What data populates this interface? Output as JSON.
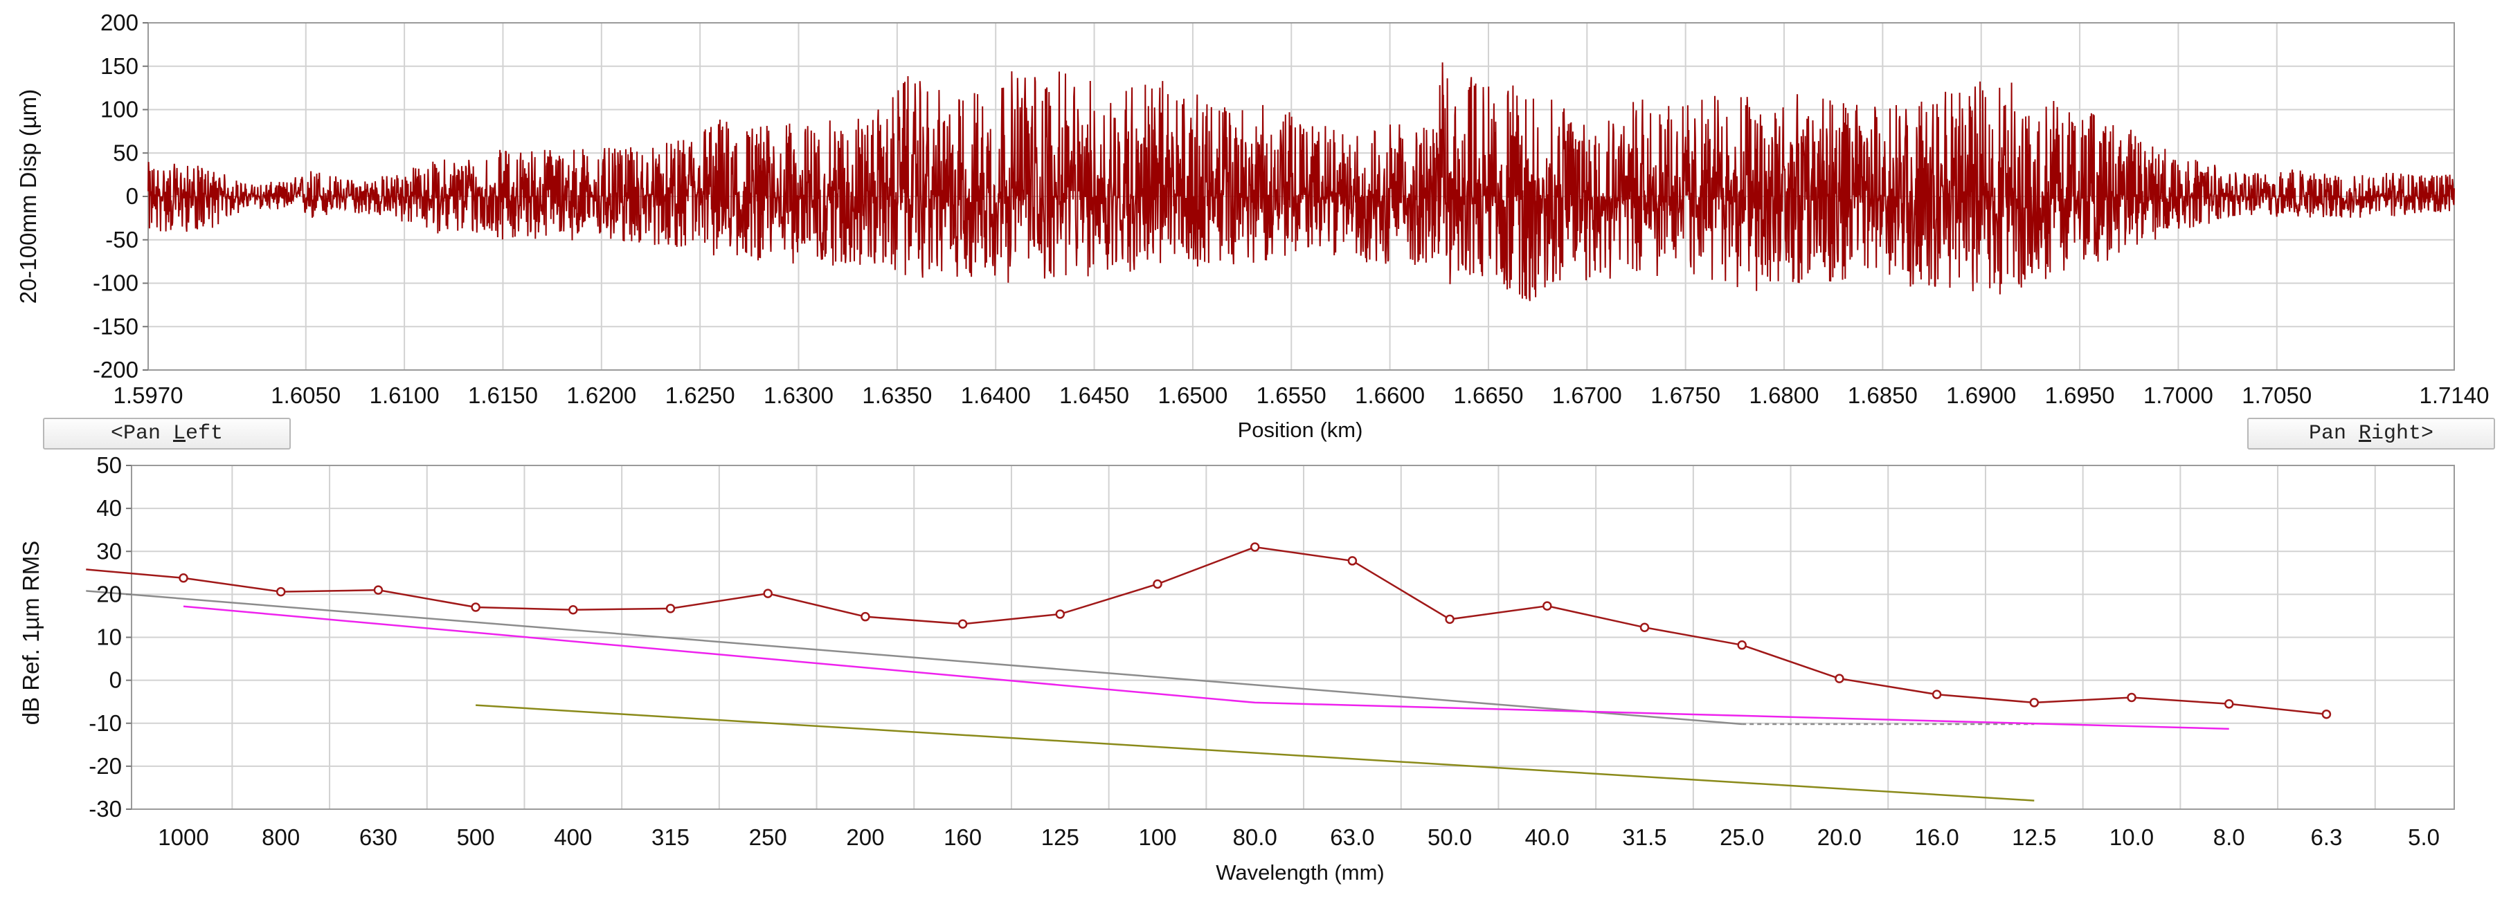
{
  "controls": {
    "pan_left": {
      "prefix": "<Pan ",
      "accel": "L",
      "suffix": "eft"
    },
    "pan_right": {
      "prefix": "Pan ",
      "accel": "R",
      "suffix": "ight>"
    }
  },
  "colors": {
    "trace": "#990000",
    "measured": "#a01818",
    "limit_gray": "#8c8c8c",
    "limit_magenta": "#ee22ee",
    "limit_olive": "#8a8a1a",
    "grid": "#d2d2d2",
    "axis": "#555555"
  },
  "chart_data": [
    {
      "type": "line",
      "title": "",
      "xlabel": "Position (km)",
      "ylabel": "20-100mm Disp (µm)",
      "xlim": [
        1.597,
        1.714
      ],
      "ylim": [
        -200,
        200
      ],
      "grid": true,
      "x_ticks": [
        1.597,
        1.605,
        1.61,
        1.615,
        1.62,
        1.625,
        1.63,
        1.635,
        1.64,
        1.645,
        1.65,
        1.655,
        1.66,
        1.665,
        1.67,
        1.675,
        1.68,
        1.685,
        1.69,
        1.695,
        1.7,
        1.705,
        1.714
      ],
      "x_tick_labels": [
        "1.5970",
        "1.6050",
        "1.6100",
        "1.6150",
        "1.6200",
        "1.6250",
        "1.6300",
        "1.6350",
        "1.6400",
        "1.6450",
        "1.6500",
        "1.6550",
        "1.6600",
        "1.6650",
        "1.6700",
        "1.6750",
        "1.6800",
        "1.6850",
        "1.6900",
        "1.6950",
        "1.7000",
        "1.7050",
        "1.7140"
      ],
      "y_ticks": [
        200,
        150,
        100,
        50,
        0,
        -50,
        -100,
        -150,
        -200
      ],
      "y_tick_labels": [
        "200",
        "150",
        "100",
        "50",
        "0",
        "-50",
        "-100",
        "-150",
        "-200"
      ],
      "envelope": {
        "x": [
          1.597,
          1.6,
          1.602,
          1.604,
          1.6055,
          1.607,
          1.609,
          1.612,
          1.615,
          1.618,
          1.621,
          1.624,
          1.6255,
          1.628,
          1.631,
          1.634,
          1.6355,
          1.638,
          1.64,
          1.642,
          1.645,
          1.648,
          1.651,
          1.654,
          1.656,
          1.658,
          1.66,
          1.662,
          1.6625,
          1.665,
          1.667,
          1.669,
          1.672,
          1.675,
          1.678,
          1.681,
          1.684,
          1.687,
          1.689,
          1.6915,
          1.694,
          1.697,
          1.7,
          1.703,
          1.706,
          1.709,
          1.712,
          1.714
        ],
        "y_max": [
          40,
          35,
          15,
          18,
          35,
          20,
          25,
          45,
          55,
          60,
          55,
          65,
          95,
          85,
          85,
          100,
          140,
          115,
          145,
          150,
          135,
          140,
          110,
          105,
          90,
          70,
          85,
          80,
          160,
          135,
          125,
          105,
          115,
          110,
          125,
          120,
          105,
          115,
          125,
          145,
          110,
          85,
          50,
          30,
          35,
          30,
          28,
          25
        ],
        "y_min": [
          -45,
          -40,
          -15,
          -15,
          -30,
          -18,
          -25,
          -45,
          -50,
          -50,
          -55,
          -60,
          -70,
          -75,
          -80,
          -85,
          -95,
          -95,
          -100,
          -100,
          -95,
          -85,
          -80,
          -75,
          -65,
          -70,
          -85,
          -80,
          -105,
          -95,
          -125,
          -100,
          -95,
          -95,
          -110,
          -105,
          -100,
          -105,
          -110,
          -115,
          -90,
          -70,
          -40,
          -25,
          -25,
          -25,
          -22,
          -18
        ]
      }
    },
    {
      "type": "line",
      "title": "",
      "xlabel": "Wavelength (mm)",
      "ylabel": "dB Ref. 1µm RMS",
      "ylim": [
        -30,
        50
      ],
      "grid": true,
      "x_tick_labels": [
        "1000",
        "800",
        "630",
        "500",
        "400",
        "315",
        "250",
        "200",
        "160",
        "125",
        "100",
        "80.0",
        "63.0",
        "50.0",
        "40.0",
        "31.5",
        "25.0",
        "20.0",
        "16.0",
        "12.5",
        "10.0",
        "8.0",
        "6.3",
        "5.0"
      ],
      "y_ticks": [
        50,
        40,
        30,
        20,
        10,
        0,
        -10,
        -20,
        -30
      ],
      "y_tick_labels": [
        "50",
        "40",
        "30",
        "20",
        "10",
        "0",
        "-10",
        "-20",
        "-30"
      ],
      "series": [
        {
          "key": "measured",
          "style": "line+markers",
          "x": [
            "1250",
            "1000",
            "800",
            "630",
            "500",
            "400",
            "315",
            "250",
            "200",
            "160",
            "125",
            "100",
            "80.0",
            "63.0",
            "50.0",
            "40.0",
            "31.5",
            "25.0",
            "20.0",
            "16.0",
            "12.5",
            "10.0",
            "8.0",
            "6.3"
          ],
          "y": [
            25.8,
            23.8,
            20.6,
            21.0,
            17.0,
            16.4,
            16.7,
            20.2,
            14.8,
            13.1,
            15.4,
            22.4,
            31.0,
            27.8,
            14.2,
            17.3,
            12.3,
            8.2,
            0.4,
            -3.3,
            -5.2,
            -4.0,
            -5.5,
            -7.9
          ],
          "marker_from_index": 1
        },
        {
          "key": "limit_gray",
          "style": "line",
          "x": [
            "1250",
            "25.0",
            "12.5"
          ],
          "y": [
            20.8,
            -10.2,
            -10.2
          ],
          "dashed_after_index": 1
        },
        {
          "key": "limit_magenta",
          "style": "line",
          "x": [
            "1000",
            "80.0",
            "8.0"
          ],
          "y": [
            17.2,
            -5.2,
            -11.3
          ]
        },
        {
          "key": "limit_olive",
          "style": "line",
          "x": [
            "500",
            "12.5"
          ],
          "y": [
            -5.8,
            -28.0
          ]
        }
      ]
    }
  ]
}
